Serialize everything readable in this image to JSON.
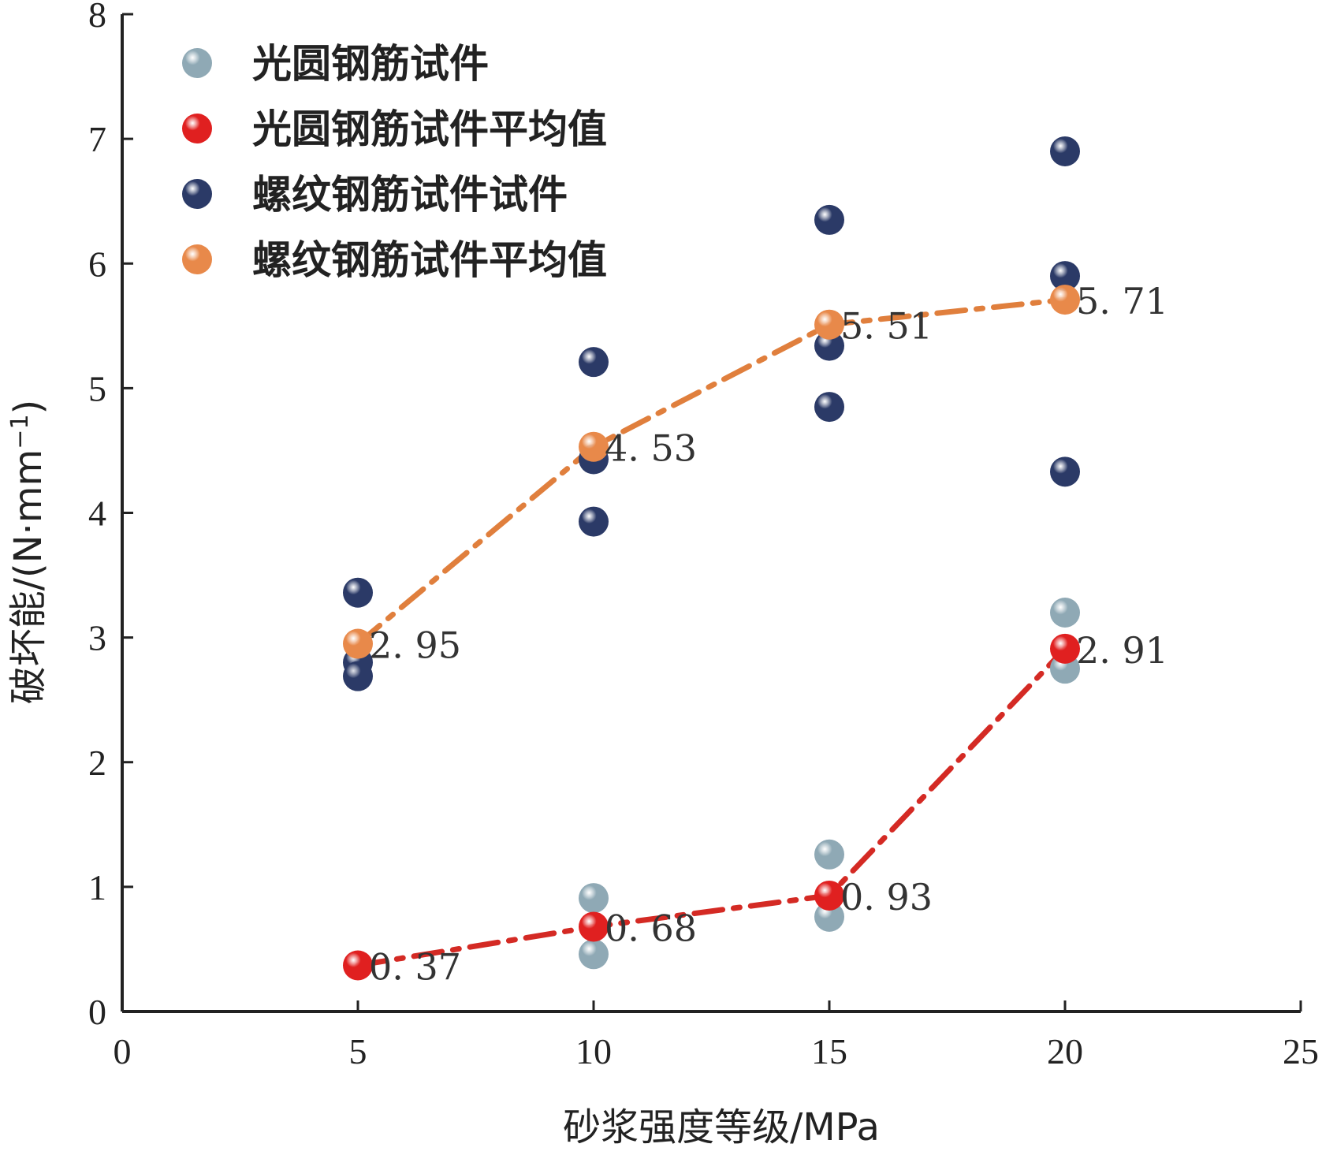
{
  "chart_data": {
    "type": "scatter",
    "xlabel": "砂浆强度等级/MPa",
    "ylabel": "破坏能/(N·mm",
    "ylabel_sup": "−1",
    "ylabel_close": ")",
    "xlim": [
      0,
      25
    ],
    "ylim": [
      0,
      8
    ],
    "xticks": [
      0,
      5,
      10,
      15,
      20,
      25
    ],
    "yticks": [
      0,
      1,
      2,
      3,
      4,
      5,
      6,
      7,
      8
    ],
    "grid": false,
    "legend_position": "top-left",
    "series": [
      {
        "name": "光圆钢筋试件",
        "kind": "points",
        "color": "#8fa9b5",
        "points": [
          [
            10,
            0.91
          ],
          [
            10,
            0.46
          ],
          [
            15,
            1.26
          ],
          [
            15,
            0.76
          ],
          [
            20,
            3.2
          ],
          [
            20,
            2.75
          ]
        ]
      },
      {
        "name": "光圆钢筋试件平均值",
        "kind": "mean",
        "color": "#e02020",
        "line_color": "#d42a24",
        "points": [
          [
            5,
            0.37
          ],
          [
            10,
            0.68
          ],
          [
            15,
            0.93
          ],
          [
            20,
            2.91
          ]
        ],
        "labels": [
          "0. 37",
          "0. 68",
          "0. 93",
          "2. 91"
        ]
      },
      {
        "name": "螺纹钢筋试件试件",
        "kind": "points",
        "color": "#2b3a67",
        "points": [
          [
            5,
            3.36
          ],
          [
            5,
            2.8
          ],
          [
            5,
            2.69
          ],
          [
            10,
            5.21
          ],
          [
            10,
            4.43
          ],
          [
            10,
            3.93
          ],
          [
            15,
            6.35
          ],
          [
            15,
            5.34
          ],
          [
            15,
            4.85
          ],
          [
            20,
            6.9
          ],
          [
            20,
            5.9
          ],
          [
            20,
            4.33
          ]
        ]
      },
      {
        "name": "螺纹钢筋试件平均值",
        "kind": "mean",
        "color": "#e8894a",
        "line_color": "#e07f3d",
        "points": [
          [
            5,
            2.95
          ],
          [
            10,
            4.53
          ],
          [
            15,
            5.51
          ],
          [
            20,
            5.71
          ]
        ],
        "labels": [
          "2. 95",
          "4. 53",
          "5. 51",
          "5. 71"
        ]
      }
    ]
  }
}
